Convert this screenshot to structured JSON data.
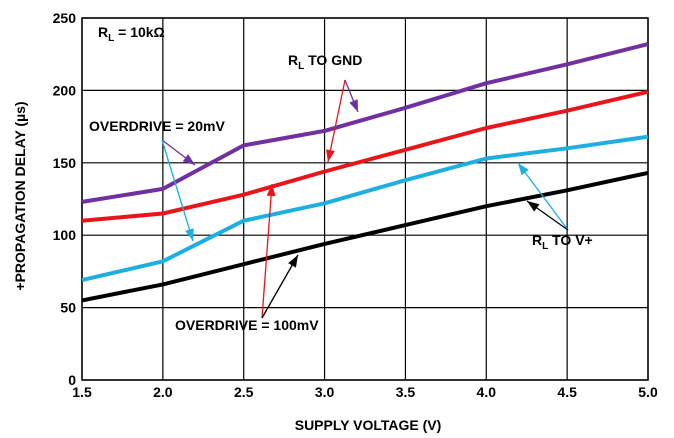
{
  "chart_data": {
    "type": "line",
    "title": "",
    "xlabel": "SUPPLY VOLTAGE (V)",
    "ylabel": "+PROPAGATION DELAY (µs)",
    "xlim": [
      1.5,
      5.0
    ],
    "ylim": [
      0,
      250
    ],
    "xticks": [
      "1.5",
      "2.0",
      "2.5",
      "3.0",
      "3.5",
      "4.0",
      "4.5",
      "5.0"
    ],
    "yticks": [
      "0",
      "50",
      "100",
      "150",
      "200",
      "250"
    ],
    "grid": true,
    "series": [
      {
        "key": "purple",
        "color": "#7030a0",
        "x": [
          1.5,
          2.0,
          2.5,
          3.0,
          3.5,
          4.0,
          4.5,
          5.0
        ],
        "y": [
          123,
          132,
          162,
          172,
          188,
          205,
          218,
          232
        ]
      },
      {
        "key": "red",
        "color": "#e8161b",
        "x": [
          1.5,
          2.0,
          2.5,
          3.0,
          3.5,
          4.0,
          4.5,
          5.0
        ],
        "y": [
          110,
          115,
          128,
          144,
          159,
          174,
          186,
          199
        ]
      },
      {
        "key": "cyan",
        "color": "#1eaee0",
        "x": [
          1.5,
          2.0,
          2.5,
          3.0,
          3.5,
          4.0,
          4.5,
          5.0
        ],
        "y": [
          69,
          82,
          110,
          122,
          138,
          153,
          160,
          168
        ]
      },
      {
        "key": "black",
        "color": "#000000",
        "x": [
          1.5,
          2.0,
          2.5,
          3.0,
          3.5,
          4.0,
          4.5,
          5.0
        ],
        "y": [
          55,
          66,
          80,
          94,
          107,
          120,
          131,
          143
        ]
      }
    ],
    "annotations": {
      "rl_value": {
        "main": "R",
        "sub": "L",
        "rest": " = 10kΩ"
      },
      "rl_gnd": {
        "main": "R",
        "sub": "L",
        "rest": " TO GND"
      },
      "rl_vplus": {
        "main": "R",
        "sub": "L",
        "rest": " TO V+"
      },
      "overdrive_20": "OVERDRIVE = 20mV",
      "overdrive_100": "OVERDRIVE = 100mV"
    }
  }
}
